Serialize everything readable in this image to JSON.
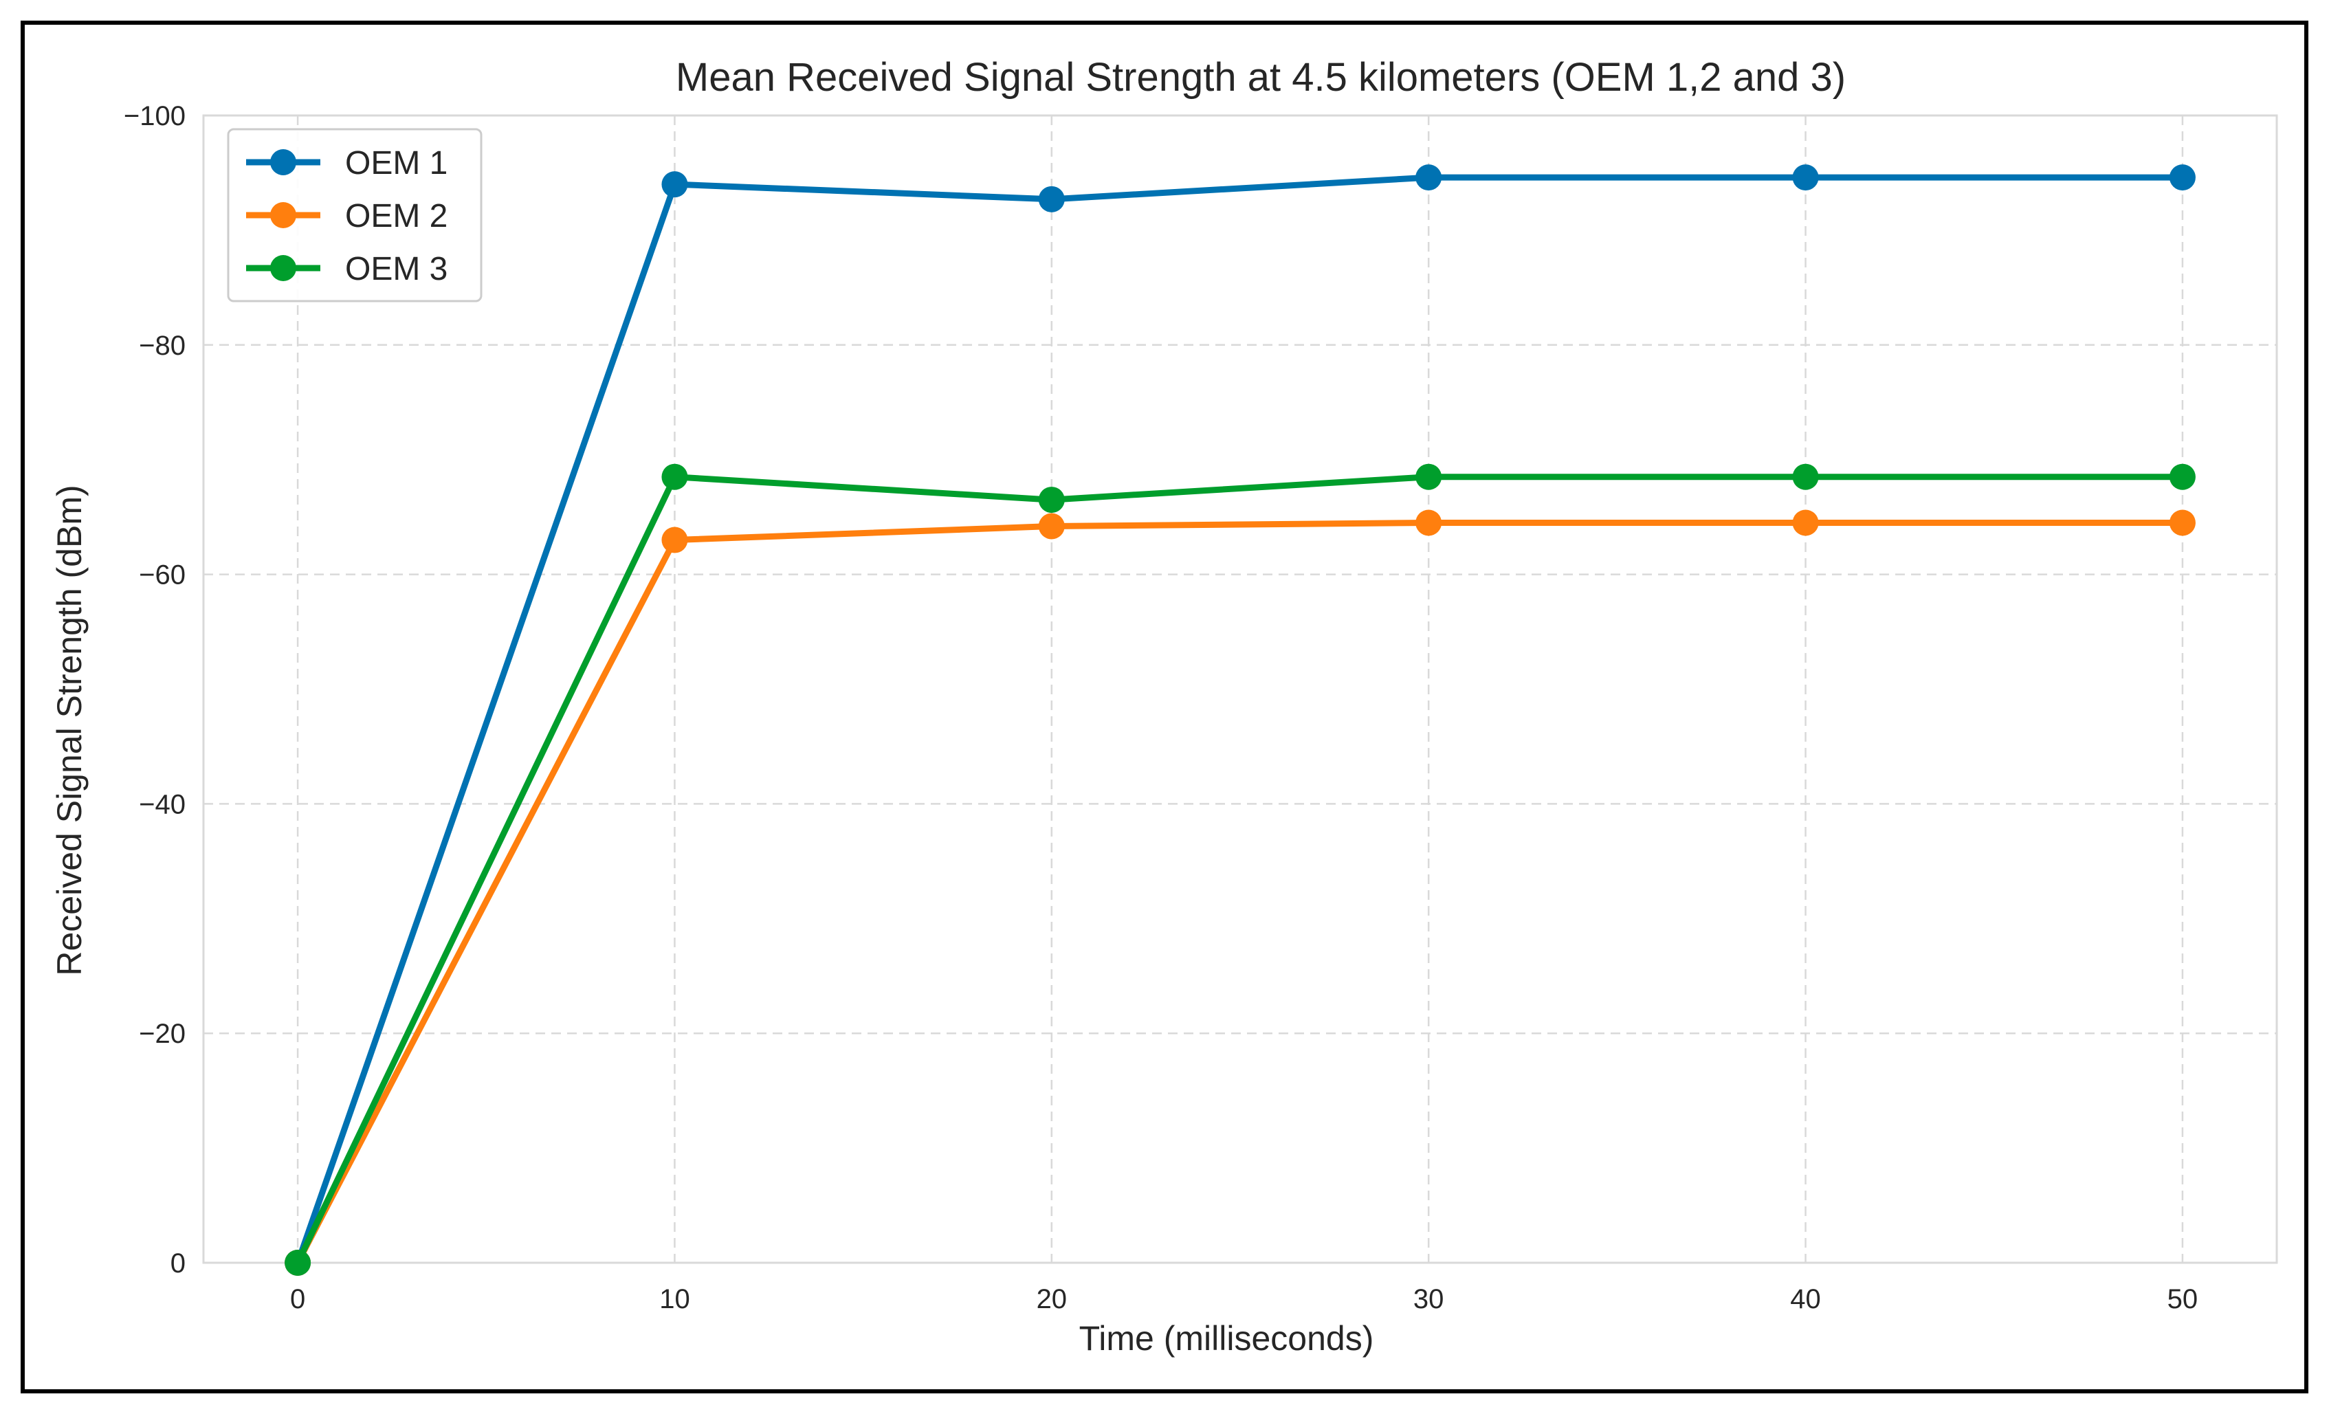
{
  "chart_data": {
    "type": "line",
    "title": "Mean Received Signal Strength at 4.5 kilometers (OEM 1,2 and 3)",
    "xlabel": "Time (milliseconds)",
    "ylabel": "Received Signal Strength (dBm)",
    "x": [
      0,
      10,
      20,
      30,
      40,
      50
    ],
    "xticks": [
      0,
      10,
      20,
      30,
      40,
      50
    ],
    "xtick_labels": [
      "0",
      "10",
      "20",
      "30",
      "40",
      "50"
    ],
    "xlim": [
      -2.5,
      52.5
    ],
    "ylim": [
      0,
      -100
    ],
    "y_inverted": true,
    "yticks": [
      0,
      -20,
      -40,
      -60,
      -80,
      -100
    ],
    "ytick_labels": [
      "0",
      "−20",
      "−40",
      "−60",
      "−80",
      "−100"
    ],
    "grid": true,
    "legend_position": "top-left",
    "series": [
      {
        "name": "OEM 1",
        "color": "#0072b2",
        "values": [
          0,
          -94,
          -92.7,
          -94.6,
          -94.6,
          -94.6
        ]
      },
      {
        "name": "OEM 2",
        "color": "#ff7f0e",
        "values": [
          0,
          -63,
          -64.2,
          -64.5,
          -64.5,
          -64.5
        ]
      },
      {
        "name": "OEM 3",
        "color": "#009e2c",
        "values": [
          0,
          -68.5,
          -66.5,
          -68.5,
          -68.5,
          -68.5
        ]
      }
    ]
  }
}
